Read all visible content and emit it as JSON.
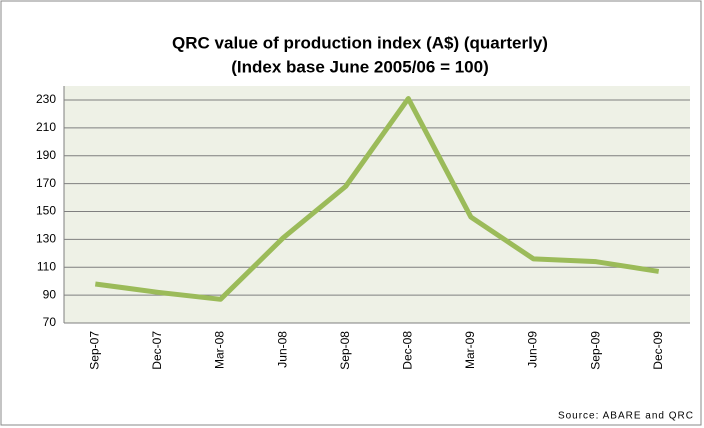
{
  "chart_data": {
    "type": "line",
    "title": "QRC value of production index (A$) (quarterly)",
    "subtitle": "(Index base June 2005/06 = 100)",
    "source": "Source: ABARE and QRC",
    "categories": [
      "Sep-07",
      "Dec-07",
      "Mar-08",
      "Jun-08",
      "Sep-08",
      "Dec-08",
      "Mar-09",
      "Jun-09",
      "Sep-09",
      "Dec-09"
    ],
    "values": [
      98,
      92,
      87,
      131,
      168,
      231,
      146,
      116,
      114,
      107
    ],
    "color": "#9bbb59",
    "ylim": [
      70,
      240
    ],
    "yticks": [
      70,
      90,
      110,
      130,
      150,
      170,
      190,
      210,
      230
    ],
    "grid": true
  }
}
